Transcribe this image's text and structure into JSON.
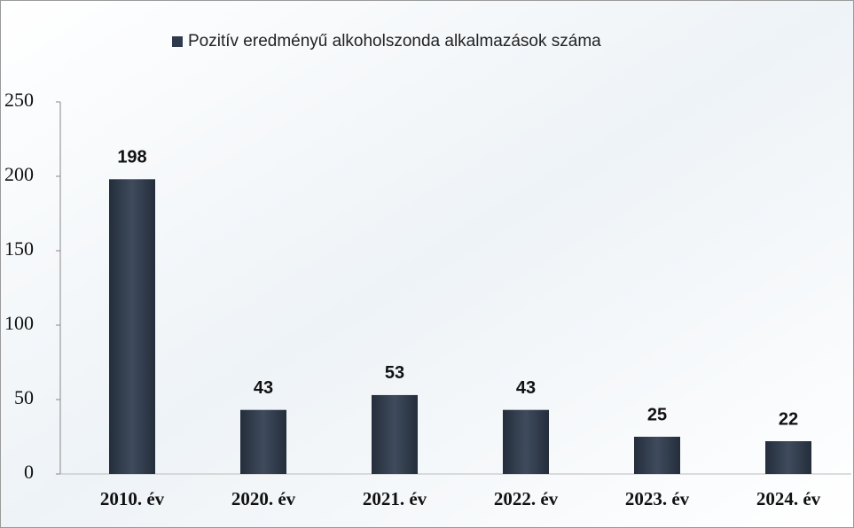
{
  "chart_data": {
    "type": "bar",
    "categories": [
      "2010. év",
      "2020. év",
      "2021. év",
      "2022. év",
      "2023. év",
      "2024. év"
    ],
    "series": [
      {
        "name": "Pozitív eredményű alkoholszonda alkalmazások száma",
        "color": "#2f3b4c",
        "values": [
          198,
          43,
          53,
          43,
          25,
          22
        ]
      }
    ],
    "ylim": [
      0,
      250
    ],
    "yticks": [
      0,
      50,
      100,
      150,
      200,
      250
    ],
    "legend": "top"
  }
}
